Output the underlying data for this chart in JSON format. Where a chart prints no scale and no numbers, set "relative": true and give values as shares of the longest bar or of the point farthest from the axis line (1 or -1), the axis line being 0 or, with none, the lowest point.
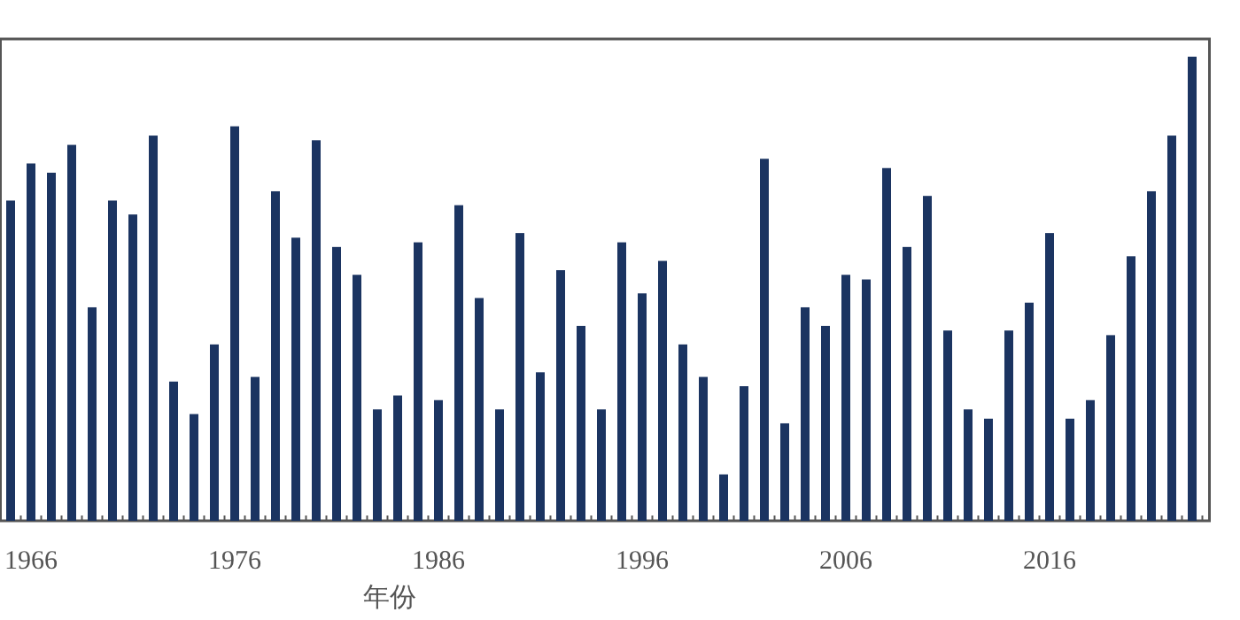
{
  "chart_data": {
    "type": "bar",
    "relative": true,
    "xlabel": "年份",
    "color": "#1b3461",
    "categories": [
      null,
      "1966",
      null,
      null,
      null,
      null,
      null,
      null,
      null,
      null,
      null,
      "1976",
      null,
      null,
      null,
      null,
      null,
      null,
      null,
      null,
      null,
      "1986",
      null,
      null,
      null,
      null,
      null,
      null,
      null,
      null,
      null,
      "1996",
      null,
      null,
      null,
      null,
      null,
      null,
      null,
      null,
      null,
      "2006",
      null,
      null,
      null,
      null,
      null,
      null,
      null,
      null,
      null,
      "2016",
      null,
      null,
      null,
      null,
      null,
      null,
      null
    ],
    "values": [
      0.69,
      0.77,
      0.75,
      0.81,
      0.46,
      0.69,
      0.66,
      0.83,
      0.3,
      0.23,
      0.38,
      0.85,
      0.31,
      0.71,
      0.61,
      0.82,
      0.59,
      0.53,
      0.24,
      0.27,
      0.6,
      0.26,
      0.68,
      0.48,
      0.24,
      0.62,
      0.32,
      0.54,
      0.42,
      0.24,
      0.6,
      0.49,
      0.56,
      0.38,
      0.31,
      0.1,
      0.29,
      0.78,
      0.21,
      0.46,
      0.42,
      0.53,
      0.52,
      0.76,
      0.59,
      0.7,
      0.41,
      0.24,
      0.22,
      0.41,
      0.47,
      0.62,
      0.22,
      0.26,
      0.4,
      0.57,
      0.71,
      0.83,
      1
    ]
  }
}
